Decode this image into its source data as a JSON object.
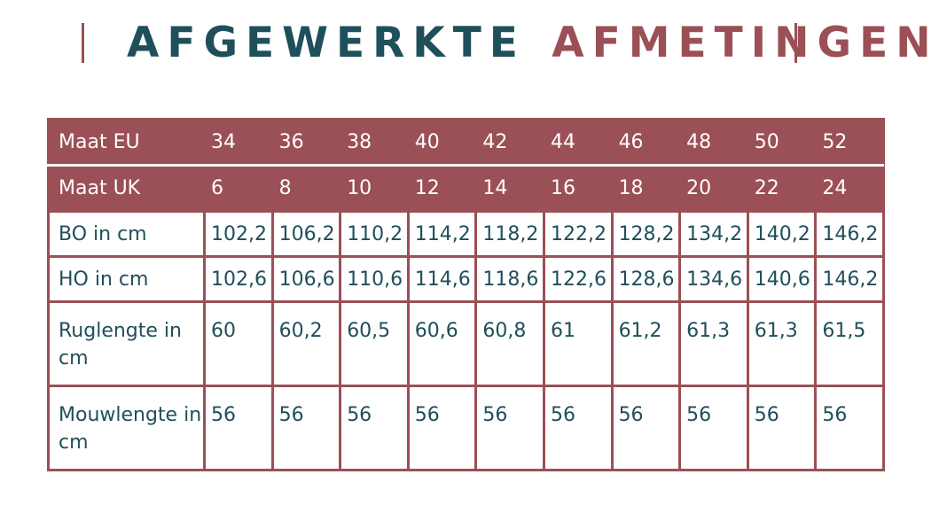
{
  "title": {
    "part1": "AFGEWERKTE",
    "part2": "AFMETINGEN"
  },
  "colors": {
    "accent": "#9b4f56",
    "text": "#1f4f5a"
  },
  "table": {
    "rows": [
      {
        "label": "Maat EU",
        "values": [
          "34",
          "36",
          "38",
          "40",
          "42",
          "44",
          "46",
          "48",
          "50",
          "52"
        ]
      },
      {
        "label": "Maat UK",
        "values": [
          "6",
          "8",
          "10",
          "12",
          "14",
          "16",
          "18",
          "20",
          "22",
          "24"
        ]
      },
      {
        "label": "BO in cm",
        "values": [
          "102,2",
          "106,2",
          "110,2",
          "114,2",
          "118,2",
          "122,2",
          "128,2",
          "134,2",
          "140,2",
          "146,2"
        ]
      },
      {
        "label": "HO in cm",
        "values": [
          "102,6",
          "106,6",
          "110,6",
          "114,6",
          "118,6",
          "122,6",
          "128,6",
          "134,6",
          "140,6",
          "146,2"
        ]
      },
      {
        "label": "Ruglengte in cm",
        "values": [
          "60",
          "60,2",
          "60,5",
          "60,6",
          "60,8",
          "61",
          "61,2",
          "61,3",
          "61,3",
          "61,5"
        ]
      },
      {
        "label": "Mouwlengte in cm",
        "values": [
          "56",
          "56",
          "56",
          "56",
          "56",
          "56",
          "56",
          "56",
          "56",
          "56"
        ]
      }
    ]
  }
}
